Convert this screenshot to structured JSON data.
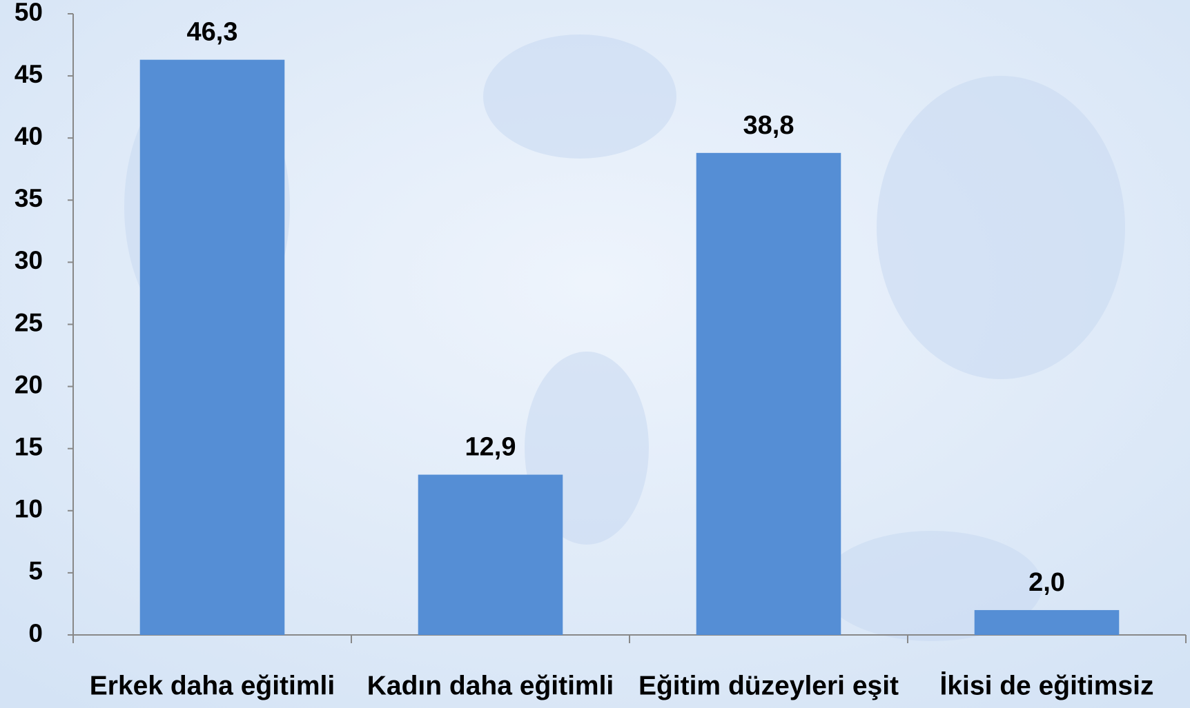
{
  "chart_data": {
    "type": "bar",
    "categories": [
      "Erkek daha eğitimli",
      "Kadın daha eğitimli",
      "Eğitim düzeyleri eşit",
      "İkisi de eğitimsiz"
    ],
    "values": [
      46.3,
      12.9,
      38.8,
      2.0
    ],
    "value_labels": [
      "46,3",
      "12,9",
      "38,8",
      "2,0"
    ],
    "color": "#558ed5",
    "ylim": [
      0,
      50
    ],
    "yticks": [
      0,
      5,
      10,
      15,
      20,
      25,
      30,
      35,
      40,
      45,
      50
    ],
    "grid": false
  }
}
